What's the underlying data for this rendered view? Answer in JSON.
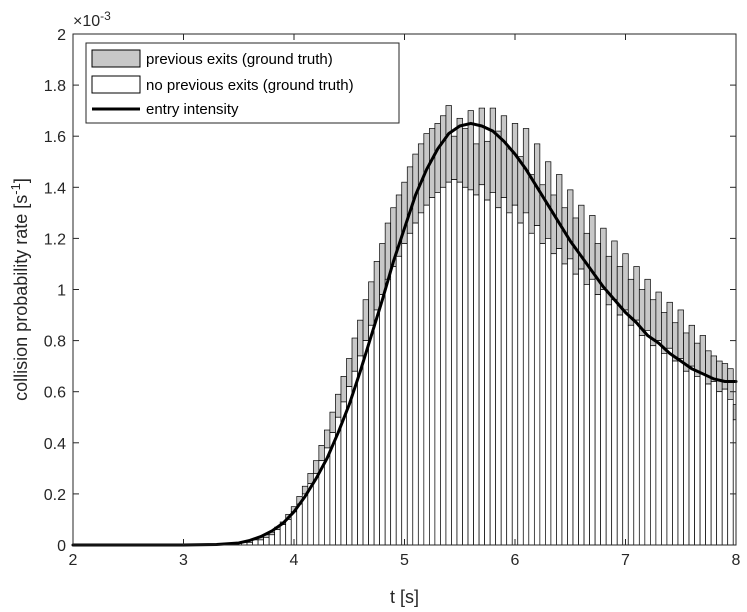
{
  "chart_data": {
    "type": "bar",
    "xlabel": "t [s]",
    "ylabel_main": "collision probability rate [s",
    "ylabel_sup": "-1",
    "ylabel_close": "]",
    "xlim": [
      2,
      8
    ],
    "ylim": [
      0,
      0.002
    ],
    "x_ticks": [
      2,
      3,
      4,
      5,
      6,
      7,
      8
    ],
    "x_tick_labels": [
      "2",
      "3",
      "4",
      "5",
      "6",
      "7",
      "8"
    ],
    "y_ticks": [
      0,
      0.0002,
      0.0004,
      0.0006,
      0.0008,
      0.001,
      0.0012,
      0.0014,
      0.0016,
      0.0018,
      0.002
    ],
    "y_tick_labels": [
      "0",
      "0.2",
      "0.4",
      "0.6",
      "0.8",
      "1",
      "1.2",
      "1.4",
      "1.6",
      "1.8",
      "2"
    ],
    "y_exponent_base": "×10",
    "y_exponent_power": "-3",
    "legend": {
      "placement": "top-left",
      "entries": [
        {
          "label": "previous exits (ground truth)",
          "kind": "patch",
          "fill": "#c8c8c8"
        },
        {
          "label": "no previous exits (ground truth)",
          "kind": "patch",
          "fill": "#ffffff"
        },
        {
          "label": "entry intensity",
          "kind": "line",
          "color": "#000000"
        }
      ]
    },
    "colors": {
      "previous_exits": "#c8c8c8",
      "no_previous_exits": "#ffffff",
      "bar_edge": "#000000",
      "entry_intensity": "#000000"
    },
    "bar_width": 0.05,
    "bars": {
      "x": [
        3.55,
        3.6,
        3.65,
        3.7,
        3.75,
        3.8,
        3.85,
        3.9,
        3.95,
        4.0,
        4.05,
        4.1,
        4.15,
        4.2,
        4.25,
        4.3,
        4.35,
        4.4,
        4.45,
        4.5,
        4.55,
        4.6,
        4.65,
        4.7,
        4.75,
        4.8,
        4.85,
        4.9,
        4.95,
        5.0,
        5.05,
        5.1,
        5.15,
        5.2,
        5.25,
        5.3,
        5.35,
        5.4,
        5.45,
        5.5,
        5.55,
        5.6,
        5.65,
        5.7,
        5.75,
        5.8,
        5.85,
        5.9,
        5.95,
        6.0,
        6.05,
        6.1,
        6.15,
        6.2,
        6.25,
        6.3,
        6.35,
        6.4,
        6.45,
        6.5,
        6.55,
        6.6,
        6.65,
        6.7,
        6.75,
        6.8,
        6.85,
        6.9,
        6.95,
        7.0,
        7.05,
        7.1,
        7.15,
        7.2,
        7.25,
        7.3,
        7.35,
        7.4,
        7.45,
        7.5,
        7.55,
        7.6,
        7.65,
        7.7,
        7.75,
        7.8,
        7.85,
        7.9,
        7.95,
        8.0
      ],
      "no_previous_exits": [
        1e-05,
        1e-05,
        2e-05,
        2e-05,
        3e-05,
        4e-05,
        6e-05,
        8e-05,
        0.0001,
        0.00013,
        0.00016,
        0.0002,
        0.00024,
        0.00028,
        0.00033,
        0.00038,
        0.00044,
        0.0005,
        0.00056,
        0.00062,
        0.00068,
        0.00074,
        0.0008,
        0.00086,
        0.00092,
        0.00098,
        0.00104,
        0.00109,
        0.00113,
        0.00118,
        0.00122,
        0.00126,
        0.0013,
        0.00133,
        0.00136,
        0.00138,
        0.0014,
        0.00142,
        0.00143,
        0.00142,
        0.0014,
        0.00139,
        0.00137,
        0.00141,
        0.00135,
        0.00138,
        0.00132,
        0.00136,
        0.0013,
        0.00133,
        0.00126,
        0.0013,
        0.00122,
        0.00125,
        0.00118,
        0.0012,
        0.00114,
        0.00116,
        0.0011,
        0.00112,
        0.00106,
        0.00108,
        0.00102,
        0.00104,
        0.00098,
        0.001,
        0.00094,
        0.00096,
        0.0009,
        0.00092,
        0.00086,
        0.00088,
        0.00082,
        0.00084,
        0.00078,
        0.0008,
        0.00075,
        0.00077,
        0.00072,
        0.00073,
        0.00068,
        0.0007,
        0.00066,
        0.00067,
        0.00063,
        0.00064,
        0.0006,
        0.00061,
        0.00057,
        0.00049
      ],
      "total": [
        1e-05,
        1e-05,
        2e-05,
        3e-05,
        4e-05,
        5e-05,
        7e-05,
        9e-05,
        0.00012,
        0.00015,
        0.00019,
        0.00023,
        0.00028,
        0.00033,
        0.00039,
        0.00045,
        0.00052,
        0.00059,
        0.00066,
        0.00073,
        0.00081,
        0.00088,
        0.00096,
        0.00103,
        0.00111,
        0.00118,
        0.00126,
        0.00132,
        0.00137,
        0.00142,
        0.00148,
        0.00153,
        0.00157,
        0.00161,
        0.00163,
        0.00165,
        0.00168,
        0.00172,
        0.0016,
        0.00167,
        0.00163,
        0.0017,
        0.00157,
        0.00171,
        0.00158,
        0.00171,
        0.00162,
        0.00168,
        0.00155,
        0.00165,
        0.00152,
        0.00163,
        0.00145,
        0.00157,
        0.00141,
        0.0015,
        0.00137,
        0.00145,
        0.00132,
        0.00139,
        0.00128,
        0.00133,
        0.00122,
        0.00129,
        0.00118,
        0.00124,
        0.00113,
        0.00119,
        0.00109,
        0.00114,
        0.00104,
        0.00109,
        0.001,
        0.00104,
        0.00096,
        0.00099,
        0.00091,
        0.00095,
        0.00087,
        0.00092,
        0.00083,
        0.00086,
        0.00079,
        0.00082,
        0.00076,
        0.00074,
        0.00072,
        0.00071,
        0.00069,
        0.00055
      ]
    },
    "entry_intensity": {
      "x": [
        2.0,
        3.0,
        3.3,
        3.5,
        3.6,
        3.7,
        3.8,
        3.9,
        4.0,
        4.1,
        4.2,
        4.3,
        4.4,
        4.5,
        4.6,
        4.7,
        4.8,
        4.9,
        5.0,
        5.1,
        5.2,
        5.3,
        5.4,
        5.5,
        5.6,
        5.7,
        5.8,
        5.9,
        6.0,
        6.1,
        6.2,
        6.3,
        6.4,
        6.5,
        6.6,
        6.7,
        6.8,
        6.9,
        7.0,
        7.1,
        7.2,
        7.3,
        7.4,
        7.5,
        7.6,
        7.7,
        7.8,
        7.9,
        8.0
      ],
      "y": [
        0,
        0,
        2e-06,
        8e-06,
        1.8e-05,
        3.3e-05,
        5.5e-05,
        8.5e-05,
        0.00013,
        0.00019,
        0.00026,
        0.00034,
        0.00044,
        0.00055,
        0.00068,
        0.00082,
        0.00096,
        0.00111,
        0.00124,
        0.00137,
        0.00147,
        0.00155,
        0.00161,
        0.00164,
        0.00165,
        0.00164,
        0.00162,
        0.00158,
        0.00153,
        0.00147,
        0.0014,
        0.00133,
        0.00126,
        0.00119,
        0.00113,
        0.00107,
        0.00101,
        0.00096,
        0.00091,
        0.00087,
        0.00082,
        0.00079,
        0.00075,
        0.00072,
        0.00069,
        0.00067,
        0.00065,
        0.00064,
        0.00064
      ]
    }
  }
}
